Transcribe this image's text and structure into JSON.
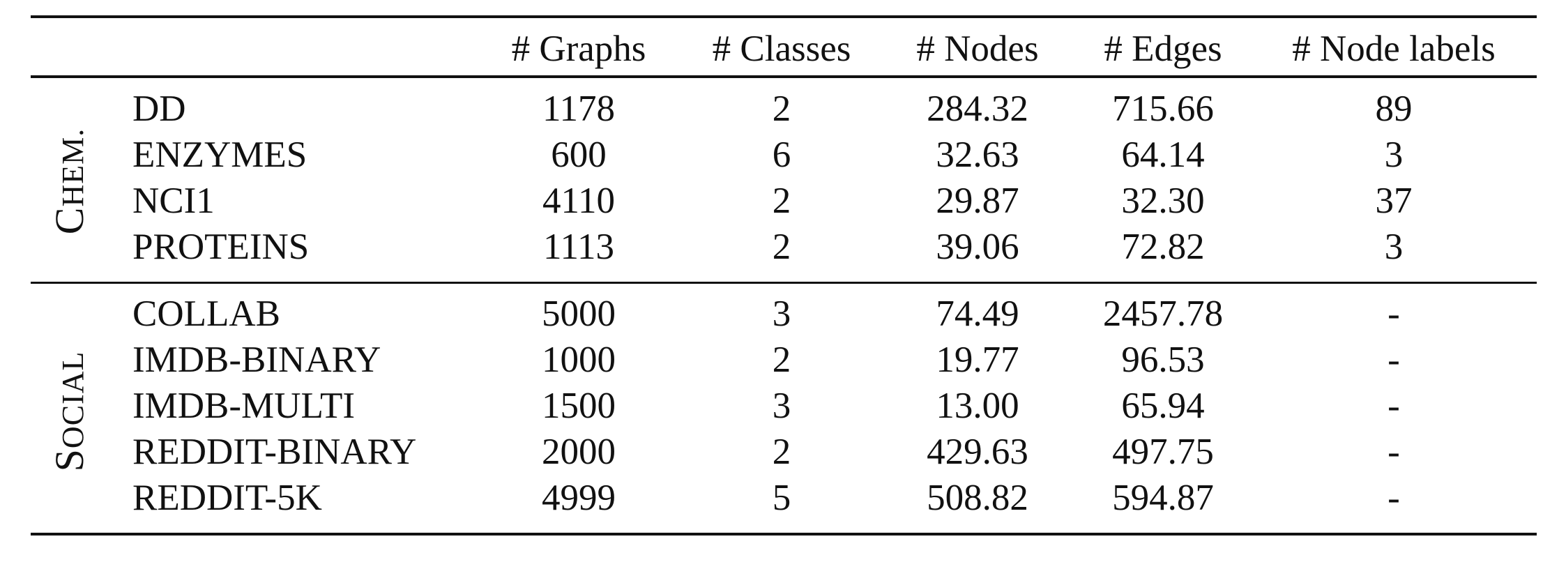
{
  "table": {
    "columns": [
      "# Graphs",
      "# Classes",
      "# Nodes",
      "# Edges",
      "# Node labels"
    ],
    "groups": [
      {
        "label_first": "C",
        "label_rest": "HEM.",
        "rows": [
          {
            "name": "DD",
            "graphs": "1178",
            "classes": "2",
            "nodes": "284.32",
            "edges": "715.66",
            "node_labels": "89"
          },
          {
            "name": "ENZYMES",
            "graphs": "600",
            "classes": "6",
            "nodes": "32.63",
            "edges": "64.14",
            "node_labels": "3"
          },
          {
            "name": "NCI1",
            "graphs": "4110",
            "classes": "2",
            "nodes": "29.87",
            "edges": "32.30",
            "node_labels": "37"
          },
          {
            "name": "PROTEINS",
            "graphs": "1113",
            "classes": "2",
            "nodes": "39.06",
            "edges": "72.82",
            "node_labels": "3"
          }
        ]
      },
      {
        "label_first": "S",
        "label_rest": "OCIAL",
        "rows": [
          {
            "name": "COLLAB",
            "graphs": "5000",
            "classes": "3",
            "nodes": "74.49",
            "edges": "2457.78",
            "node_labels": "-"
          },
          {
            "name": "IMDB-BINARY",
            "graphs": "1000",
            "classes": "2",
            "nodes": "19.77",
            "edges": "96.53",
            "node_labels": "-"
          },
          {
            "name": "IMDB-MULTI",
            "graphs": "1500",
            "classes": "3",
            "nodes": "13.00",
            "edges": "65.94",
            "node_labels": "-"
          },
          {
            "name": "REDDIT-BINARY",
            "graphs": "2000",
            "classes": "2",
            "nodes": "429.63",
            "edges": "497.75",
            "node_labels": "-"
          },
          {
            "name": "REDDIT-5K",
            "graphs": "4999",
            "classes": "5",
            "nodes": "508.82",
            "edges": "594.87",
            "node_labels": "-"
          }
        ]
      }
    ]
  }
}
